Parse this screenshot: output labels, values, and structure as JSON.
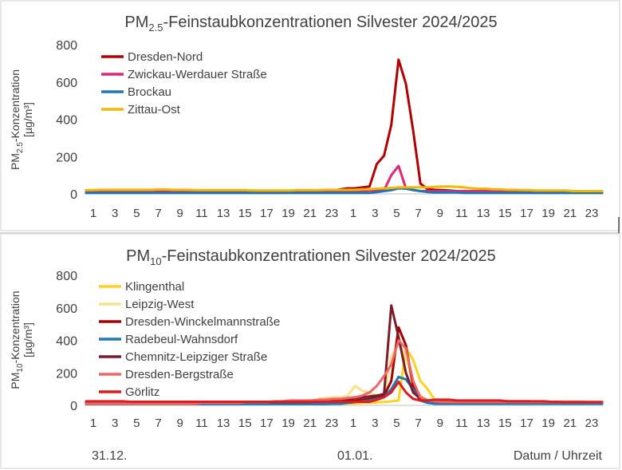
{
  "chart_data": [
    {
      "type": "line",
      "title": "PM2.5-Feinstaubkonzentrationen Silvester 2024/2025",
      "title_main": "PM",
      "title_sub": "2.5",
      "title_rest": "-Feinstaubkonzentrationen Silvester 2024/2025",
      "ylabel_line1_main": "PM",
      "ylabel_line1_sub": "2.5",
      "ylabel_line1_rest": "-Konzentration",
      "ylabel_line2": "[µg/m³]",
      "ylim": [
        0,
        800
      ],
      "yticks": [
        "0",
        "200",
        "400",
        "600",
        "800"
      ],
      "xtick_labels": [
        "1",
        "3",
        "5",
        "7",
        "9",
        "11",
        "13",
        "15",
        "17",
        "19",
        "21",
        "23",
        "1",
        "3",
        "5",
        "7",
        "9",
        "11",
        "13",
        "15",
        "17",
        "19",
        "21",
        "23"
      ],
      "legend": "top-left",
      "grid": false,
      "series": [
        {
          "name": "Dresden-Nord",
          "color": "#b30000",
          "values": [
            8,
            8,
            8,
            8,
            8,
            8,
            8,
            8,
            8,
            8,
            8,
            8,
            8,
            8,
            8,
            8,
            12,
            12,
            12,
            10,
            10,
            15,
            15,
            15,
            12,
            12,
            12,
            12,
            12,
            12,
            12,
            12,
            12,
            15,
            18,
            25,
            30,
            30,
            35,
            40,
            160,
            205,
            370,
            720,
            590,
            340,
            55,
            25,
            22,
            20,
            18,
            15,
            10,
            8,
            8,
            8,
            8,
            8,
            8,
            8,
            8,
            8,
            8,
            8,
            8,
            8,
            8,
            8,
            8,
            8,
            8,
            8
          ]
        },
        {
          "name": "Zwickau-Werdauer Straße",
          "color": "#e0257a",
          "values": [
            12,
            12,
            12,
            12,
            12,
            12,
            12,
            12,
            12,
            12,
            12,
            12,
            12,
            12,
            12,
            12,
            12,
            12,
            12,
            12,
            12,
            12,
            12,
            12,
            12,
            12,
            12,
            12,
            12,
            12,
            12,
            12,
            12,
            12,
            12,
            12,
            15,
            15,
            15,
            18,
            20,
            20,
            100,
            150,
            30,
            20,
            15,
            15,
            15,
            15,
            15,
            15,
            15,
            15,
            15,
            15,
            15,
            15,
            15,
            15,
            15,
            15,
            15,
            15,
            15,
            15,
            15,
            15,
            15,
            15,
            15,
            15
          ]
        },
        {
          "name": "Brockau",
          "color": "#1f77b4",
          "values": [
            5,
            5,
            5,
            5,
            5,
            5,
            5,
            5,
            5,
            5,
            5,
            5,
            5,
            5,
            5,
            5,
            5,
            5,
            5,
            5,
            5,
            5,
            5,
            5,
            5,
            5,
            5,
            5,
            5,
            5,
            5,
            5,
            5,
            5,
            5,
            5,
            5,
            5,
            5,
            5,
            10,
            15,
            20,
            30,
            28,
            22,
            15,
            10,
            8,
            8,
            8,
            8,
            5,
            5,
            5,
            5,
            5,
            5,
            5,
            5,
            5,
            5,
            5,
            5,
            5,
            5,
            5,
            5,
            5,
            5,
            5,
            5
          ]
        },
        {
          "name": "Zittau-Ost",
          "color": "#f2b800",
          "values": [
            20,
            20,
            22,
            22,
            22,
            22,
            22,
            22,
            22,
            22,
            24,
            24,
            22,
            22,
            22,
            20,
            20,
            20,
            20,
            20,
            20,
            20,
            20,
            18,
            18,
            18,
            18,
            18,
            18,
            20,
            20,
            20,
            20,
            22,
            22,
            22,
            22,
            22,
            25,
            25,
            28,
            30,
            32,
            35,
            35,
            35,
            35,
            35,
            38,
            40,
            40,
            38,
            35,
            30,
            28,
            28,
            25,
            25,
            22,
            22,
            20,
            20,
            18,
            18,
            18,
            18,
            18,
            15,
            15,
            15,
            15,
            15
          ]
        }
      ]
    },
    {
      "type": "line",
      "title": "PM10-Feinstaubkonzentrationen Silvester 2024/2025",
      "title_main": "PM",
      "title_sub": "10",
      "title_rest": "-Feinstaubkonzentrationen Silvester 2024/2025",
      "ylabel_line1_main": "PM",
      "ylabel_line1_sub": "10",
      "ylabel_line1_rest": "-Konzentration",
      "ylabel_line2": "[µg/m³]",
      "ylim": [
        0,
        800
      ],
      "yticks": [
        "0",
        "200",
        "400",
        "600",
        "800"
      ],
      "xtick_labels": [
        "1",
        "3",
        "5",
        "7",
        "9",
        "11",
        "13",
        "15",
        "17",
        "19",
        "21",
        "23",
        "1",
        "3",
        "5",
        "7",
        "9",
        "11",
        "13",
        "15",
        "17",
        "19",
        "21",
        "23"
      ],
      "date_labels": [
        "31.12.",
        "01.01."
      ],
      "xlabel": "Datum / Uhrzeit",
      "legend": "top-left",
      "grid": false,
      "series": [
        {
          "name": "Klingenthal",
          "color": "#ffd21f",
          "values": [
            10,
            10,
            10,
            10,
            10,
            10,
            10,
            10,
            10,
            10,
            10,
            10,
            10,
            10,
            10,
            10,
            10,
            10,
            10,
            10,
            10,
            10,
            10,
            10,
            10,
            10,
            10,
            10,
            10,
            10,
            10,
            10,
            10,
            10,
            10,
            10,
            12,
            12,
            15,
            15,
            18,
            20,
            25,
            30,
            350,
            280,
            150,
            100,
            30,
            20,
            15,
            12,
            10,
            10,
            10,
            10,
            10,
            10,
            10,
            10,
            10,
            10,
            10,
            10,
            10,
            10,
            10,
            10,
            10,
            10,
            10,
            10
          ]
        },
        {
          "name": "Leipzig-West",
          "color": "#fde08a",
          "values": [
            15,
            15,
            15,
            15,
            15,
            15,
            15,
            15,
            15,
            15,
            15,
            15,
            15,
            15,
            15,
            15,
            15,
            15,
            15,
            15,
            15,
            15,
            15,
            15,
            15,
            15,
            15,
            15,
            15,
            15,
            15,
            15,
            40,
            45,
            50,
            50,
            60,
            120,
            90,
            80,
            60,
            50,
            300,
            380,
            300,
            120,
            60,
            30,
            25,
            20,
            20,
            20,
            20,
            20,
            20,
            20,
            20,
            20,
            20,
            20,
            20,
            20,
            20,
            20,
            20,
            20,
            25,
            25,
            25,
            20,
            20,
            20
          ]
        },
        {
          "name": "Dresden-Winckelmannstraße",
          "color": "#a80000",
          "values": [
            12,
            12,
            12,
            12,
            12,
            12,
            12,
            12,
            12,
            12,
            12,
            12,
            12,
            12,
            12,
            12,
            15,
            15,
            15,
            15,
            15,
            15,
            15,
            15,
            15,
            15,
            20,
            20,
            20,
            20,
            25,
            25,
            25,
            25,
            30,
            30,
            30,
            30,
            35,
            40,
            50,
            60,
            150,
            480,
            370,
            120,
            50,
            30,
            25,
            25,
            25,
            25,
            25,
            25,
            25,
            25,
            25,
            25,
            25,
            25,
            25,
            25,
            20,
            20,
            20,
            20,
            15,
            15,
            15,
            15,
            15,
            15
          ]
        },
        {
          "name": "Radebeul-Wahnsdorf",
          "color": "#1f7ab4",
          "values": [
            8,
            8,
            8,
            8,
            8,
            8,
            8,
            8,
            8,
            8,
            8,
            8,
            8,
            8,
            8,
            8,
            8,
            8,
            8,
            8,
            8,
            8,
            8,
            8,
            8,
            8,
            8,
            8,
            8,
            8,
            8,
            8,
            8,
            8,
            10,
            10,
            15,
            20,
            25,
            30,
            40,
            50,
            100,
            175,
            160,
            100,
            30,
            15,
            10,
            10,
            10,
            10,
            10,
            10,
            10,
            10,
            10,
            10,
            10,
            10,
            10,
            10,
            10,
            10,
            10,
            10,
            10,
            10,
            10,
            10,
            10,
            10
          ]
        },
        {
          "name": "Chemnitz-Leipziger Straße",
          "color": "#7b1c2a",
          "values": [
            18,
            18,
            18,
            18,
            18,
            18,
            18,
            18,
            18,
            18,
            18,
            18,
            18,
            18,
            18,
            18,
            18,
            18,
            18,
            18,
            18,
            18,
            20,
            20,
            20,
            20,
            20,
            20,
            20,
            20,
            20,
            20,
            25,
            25,
            30,
            35,
            40,
            45,
            50,
            55,
            60,
            70,
            615,
            420,
            200,
            80,
            40,
            30,
            25,
            20,
            20,
            20,
            20,
            20,
            20,
            20,
            20,
            20,
            20,
            20,
            20,
            20,
            20,
            20,
            20,
            20,
            20,
            20,
            20,
            20,
            20,
            20
          ]
        },
        {
          "name": "Dresden-Bergstraße",
          "color": "#ee6666",
          "values": [
            10,
            10,
            10,
            10,
            10,
            10,
            10,
            10,
            10,
            10,
            10,
            10,
            10,
            10,
            10,
            10,
            15,
            15,
            15,
            15,
            15,
            15,
            20,
            20,
            20,
            20,
            25,
            25,
            30,
            30,
            30,
            30,
            35,
            35,
            40,
            40,
            45,
            50,
            60,
            80,
            120,
            180,
            250,
            400,
            350,
            150,
            50,
            30,
            25,
            20,
            20,
            20,
            20,
            20,
            20,
            20,
            20,
            20,
            20,
            20,
            20,
            20,
            20,
            20,
            20,
            20,
            20,
            20,
            20,
            20,
            20,
            20
          ]
        },
        {
          "name": "Görlitz",
          "color": "#e31a1c",
          "values": [
            25,
            25,
            25,
            25,
            25,
            25,
            22,
            22,
            22,
            22,
            22,
            22,
            22,
            22,
            22,
            22,
            22,
            22,
            22,
            22,
            22,
            22,
            22,
            22,
            22,
            22,
            22,
            22,
            22,
            22,
            22,
            22,
            22,
            22,
            22,
            22,
            22,
            22,
            22,
            22,
            35,
            50,
            80,
            145,
            80,
            40,
            30,
            30,
            35,
            35,
            35,
            30,
            30,
            30,
            30,
            30,
            30,
            30,
            25,
            25,
            25,
            25,
            25,
            25,
            22,
            22,
            20,
            20,
            20,
            20,
            20,
            20
          ]
        }
      ]
    }
  ]
}
